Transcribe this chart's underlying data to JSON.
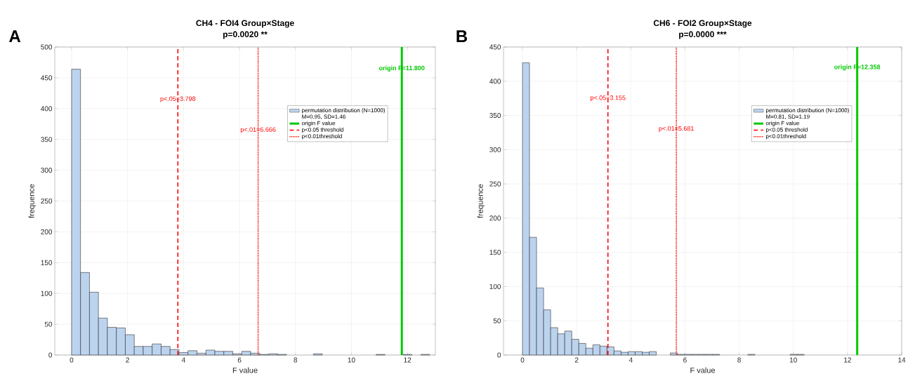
{
  "chart_data": [
    {
      "type": "histogram",
      "title": "CH4 - FOI4 Group×Stage",
      "subtitle": "p=0.0020 **",
      "xlabel": "F value",
      "ylabel": "frequence",
      "bins": [
        0,
        0.32,
        0.64,
        0.96,
        1.28,
        1.6,
        1.92,
        2.24,
        2.56,
        2.88,
        3.2,
        3.52,
        3.84,
        4.16,
        4.48,
        4.8,
        5.12,
        5.44,
        5.76,
        6.08,
        6.4,
        6.72,
        7.04,
        7.36,
        7.68,
        8,
        8.32,
        8.64,
        8.96,
        9.28,
        9.6,
        9.92,
        10.24,
        10.56,
        10.88,
        11.2,
        11.52,
        11.84,
        12.16,
        12.48,
        12.8
      ],
      "series": [
        {
          "name": "permutation distribution (N=1000)",
          "color": "#bcd3ee",
          "values": [
            464,
            134,
            102,
            60,
            45,
            44,
            33,
            14,
            14,
            18,
            14,
            9,
            4,
            7,
            3,
            8,
            6,
            6,
            2,
            6,
            3,
            1,
            2,
            1,
            0,
            0,
            0,
            2,
            0,
            0,
            0,
            0,
            0,
            0,
            1,
            0,
            0,
            1,
            0,
            1
          ]
        },
        {
          "type": "line",
          "name": "origin F value",
          "color": "#00c800",
          "x": [
            11.8,
            11.8
          ],
          "values": [
            0,
            500
          ],
          "line_style": "solid"
        },
        {
          "type": "line",
          "name": "p<0.05 threshold",
          "color": "#ff0000",
          "x": [
            3.798,
            3.798
          ],
          "values": [
            0,
            500
          ],
          "line_style": "dashed"
        },
        {
          "type": "line",
          "name": "p<0.01threshold",
          "color": "#ff0000",
          "x": [
            6.666,
            6.666
          ],
          "values": [
            0,
            500
          ],
          "line_style": "dotted"
        }
      ],
      "xlim": [
        -0.6,
        13
      ],
      "ylim": [
        0,
        500
      ],
      "xticks": [
        0,
        2,
        4,
        6,
        8,
        10,
        12
      ],
      "yticks": [
        0,
        50,
        100,
        150,
        200,
        250,
        300,
        350,
        400,
        450,
        500
      ],
      "grid": true,
      "legend": "top right",
      "annotations": [
        "A",
        "M=0.95, SD=1.46",
        {
          "text": "p<.05=3.798",
          "x": 3.798,
          "y": 415
        },
        {
          "text": "p<.01=6.666",
          "x": 6.666,
          "y": 365
        },
        {
          "text": "origin F=11.800",
          "x": 11.8,
          "y": 465
        }
      ]
    },
    {
      "type": "histogram",
      "title": "CH6 - FOI2 Group×Stage",
      "subtitle": "p=0.0000 ***",
      "xlabel": "F value",
      "ylabel": "frequence",
      "bins": [
        0,
        0.26,
        0.52,
        0.78,
        1.04,
        1.3,
        1.56,
        1.82,
        2.08,
        2.34,
        2.6,
        2.86,
        3.12,
        3.38,
        3.64,
        3.9,
        4.16,
        4.42,
        4.68,
        4.94,
        5.2,
        5.46,
        5.72,
        5.98,
        6.24,
        6.5,
        6.76,
        7.02,
        7.28,
        7.54,
        7.8,
        8.06,
        8.32,
        8.58,
        8.84,
        9.1,
        9.36,
        9.62,
        9.88,
        10.14,
        10.4
      ],
      "series": [
        {
          "name": "permutation distribution (N=1000)",
          "color": "#bcd3ee",
          "values": [
            427,
            172,
            98,
            66,
            40,
            31,
            35,
            23,
            17,
            10,
            15,
            13,
            12,
            6,
            4,
            5,
            5,
            4,
            5,
            0,
            0,
            3,
            1,
            1,
            1,
            1,
            1,
            1,
            0,
            0,
            0,
            0,
            1,
            0,
            0,
            0,
            0,
            0,
            1,
            1
          ]
        },
        {
          "type": "line",
          "name": "origin F value",
          "color": "#00c800",
          "x": [
            12.358,
            12.358
          ],
          "values": [
            0,
            450
          ],
          "line_style": "solid"
        },
        {
          "type": "line",
          "name": "p<0.05 threshold",
          "color": "#ff0000",
          "x": [
            3.155,
            3.155
          ],
          "values": [
            0,
            450
          ],
          "line_style": "dashed"
        },
        {
          "type": "line",
          "name": "p<0.01threshold",
          "color": "#ff0000",
          "x": [
            5.681,
            5.681
          ],
          "values": [
            0,
            450
          ],
          "line_style": "dotted"
        }
      ],
      "xlim": [
        -0.7,
        14
      ],
      "ylim": [
        0,
        450
      ],
      "xticks": [
        0,
        2,
        4,
        6,
        8,
        10,
        12,
        14
      ],
      "yticks": [
        0,
        50,
        100,
        150,
        200,
        250,
        300,
        350,
        400,
        450
      ],
      "grid": true,
      "legend": "top right",
      "annotations": [
        "B",
        "M=0.81, SD=1.19",
        {
          "text": "p<.05=3.155",
          "x": 3.155,
          "y": 375
        },
        {
          "text": "p<.01=5.681",
          "x": 5.681,
          "y": 330
        },
        {
          "text": "origin F=12.358",
          "x": 12.358,
          "y": 420
        }
      ]
    }
  ]
}
